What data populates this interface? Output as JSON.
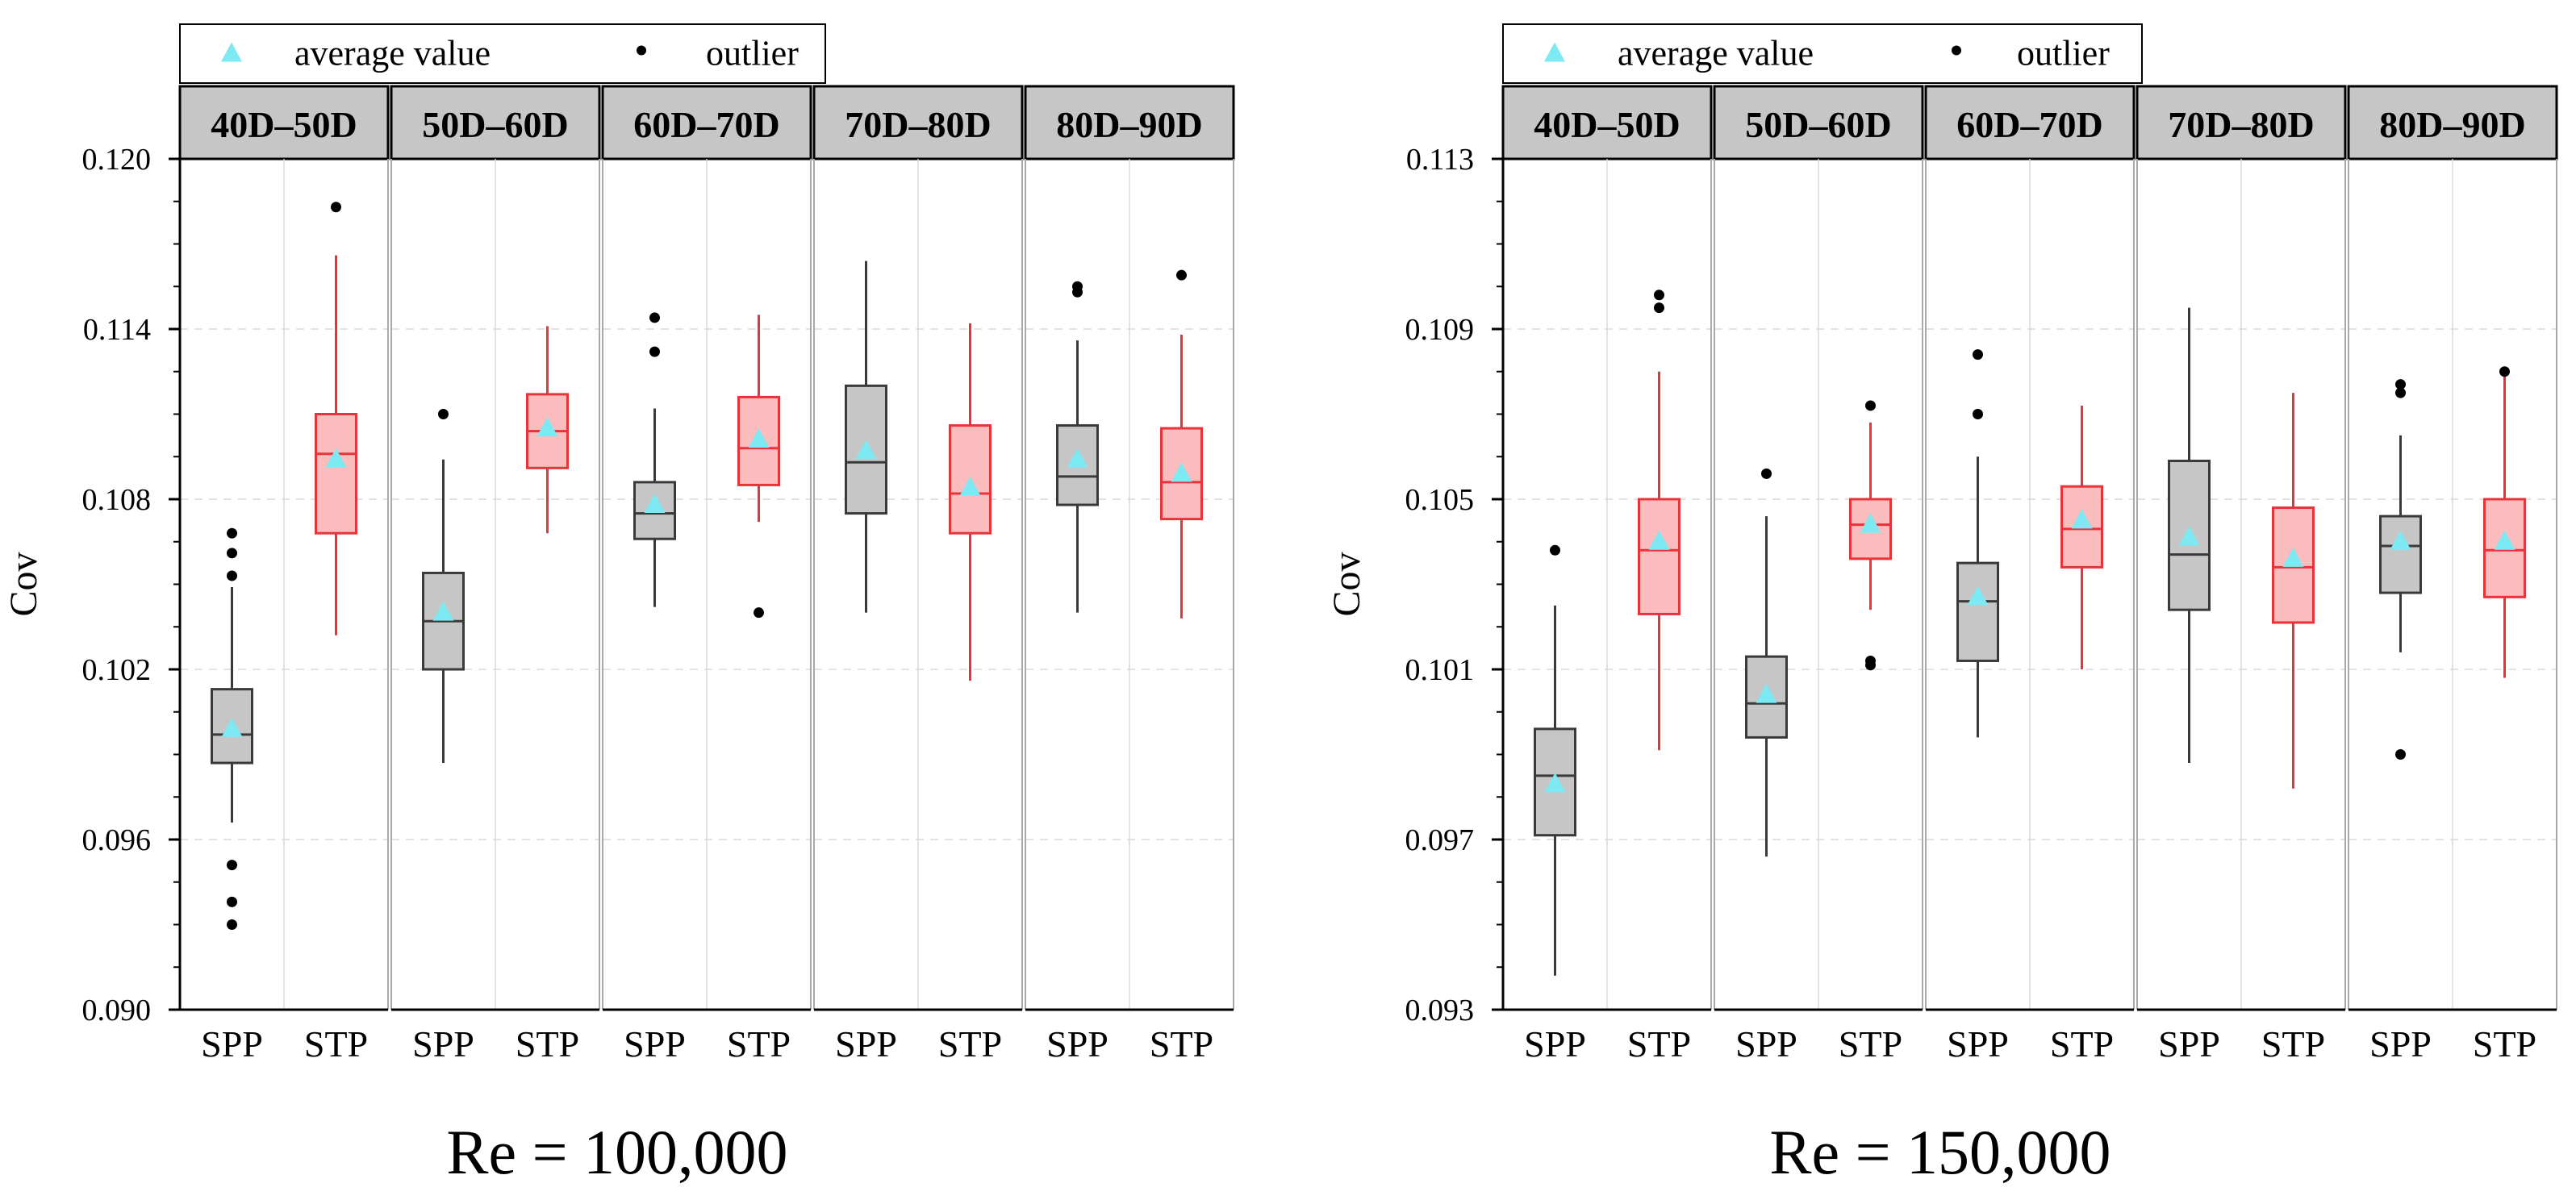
{
  "legend": {
    "mean_label": "average  value",
    "outlier_label": "outlier",
    "mean_color": "#7de9f2",
    "outlier_color": "#000000"
  },
  "colors": {
    "SPP_fill": "#c6c6c6",
    "SPP_stroke": "#3a3a3a",
    "STP_fill": "#fbbcbd",
    "STP_stroke": "#e8333a",
    "header_fill": "#c6c6c6"
  },
  "chart_data": [
    {
      "type": "box",
      "title": "Re = 100,000",
      "ylabel": "Cov",
      "ylim": [
        0.09,
        0.12
      ],
      "yticks": [
        "0.090",
        "0.096",
        "0.102",
        "0.108",
        "0.114",
        "0.120"
      ],
      "panels": [
        {
          "label": "40D–50D",
          "groups": [
            {
              "name": "SPP",
              "whisker_low": 0.0966,
              "q1": 0.0987,
              "median": 0.0997,
              "q3": 0.1013,
              "whisker_high": 0.1049,
              "mean": 0.0999,
              "outliers": [
                0.093,
                0.0938,
                0.0951,
                0.1053,
                0.1061,
                0.1068
              ]
            },
            {
              "name": "STP",
              "whisker_low": 0.1032,
              "q1": 0.1068,
              "median": 0.1096,
              "q3": 0.111,
              "whisker_high": 0.1166,
              "mean": 0.1094,
              "outliers": [
                0.1183
              ]
            }
          ]
        },
        {
          "label": "50D–60D",
          "groups": [
            {
              "name": "SPP",
              "whisker_low": 0.0987,
              "q1": 0.102,
              "median": 0.1037,
              "q3": 0.1054,
              "whisker_high": 0.1094,
              "mean": 0.104,
              "outliers": [
                0.111
              ]
            },
            {
              "name": "STP",
              "whisker_low": 0.1068,
              "q1": 0.1091,
              "median": 0.1104,
              "q3": 0.1117,
              "whisker_high": 0.1141,
              "mean": 0.1105,
              "outliers": []
            }
          ]
        },
        {
          "label": "60D–70D",
          "groups": [
            {
              "name": "SPP",
              "whisker_low": 0.1042,
              "q1": 0.1066,
              "median": 0.1075,
              "q3": 0.1086,
              "whisker_high": 0.1112,
              "mean": 0.1078,
              "outliers": [
                0.1132,
                0.1144
              ]
            },
            {
              "name": "STP",
              "whisker_low": 0.1072,
              "q1": 0.1085,
              "median": 0.1098,
              "q3": 0.1116,
              "whisker_high": 0.1145,
              "mean": 0.1101,
              "outliers": [
                0.104
              ]
            }
          ]
        },
        {
          "label": "70D–80D",
          "groups": [
            {
              "name": "SPP",
              "whisker_low": 0.104,
              "q1": 0.1075,
              "median": 0.1093,
              "q3": 0.112,
              "whisker_high": 0.1164,
              "mean": 0.1097,
              "outliers": []
            },
            {
              "name": "STP",
              "whisker_low": 0.1016,
              "q1": 0.1068,
              "median": 0.1082,
              "q3": 0.1106,
              "whisker_high": 0.1142,
              "mean": 0.1084,
              "outliers": []
            }
          ]
        },
        {
          "label": "80D–90D",
          "groups": [
            {
              "name": "SPP",
              "whisker_low": 0.104,
              "q1": 0.1078,
              "median": 0.1088,
              "q3": 0.1106,
              "whisker_high": 0.1136,
              "mean": 0.1094,
              "outliers": [
                0.1153,
                0.1155
              ]
            },
            {
              "name": "STP",
              "whisker_low": 0.1038,
              "q1": 0.1073,
              "median": 0.1086,
              "q3": 0.1105,
              "whisker_high": 0.1138,
              "mean": 0.1089,
              "outliers": [
                0.1159
              ]
            }
          ]
        }
      ]
    },
    {
      "type": "box",
      "title": "Re = 150,000",
      "ylabel": "Cov",
      "ylim": [
        0.093,
        0.113
      ],
      "yticks": [
        "0.093",
        "0.097",
        "0.101",
        "0.105",
        "0.109",
        "0.113"
      ],
      "panels": [
        {
          "label": "40D–50D",
          "groups": [
            {
              "name": "SPP",
              "whisker_low": 0.0938,
              "q1": 0.0971,
              "median": 0.0985,
              "q3": 0.0996,
              "whisker_high": 0.1025,
              "mean": 0.0983,
              "outliers": [
                0.1038
              ]
            },
            {
              "name": "STP",
              "whisker_low": 0.0991,
              "q1": 0.1023,
              "median": 0.1038,
              "q3": 0.105,
              "whisker_high": 0.108,
              "mean": 0.104,
              "outliers": [
                0.1095,
                0.1098
              ]
            }
          ]
        },
        {
          "label": "50D–60D",
          "groups": [
            {
              "name": "SPP",
              "whisker_low": 0.0966,
              "q1": 0.0994,
              "median": 0.1002,
              "q3": 0.1013,
              "whisker_high": 0.1046,
              "mean": 0.1004,
              "outliers": [
                0.1056
              ]
            },
            {
              "name": "STP",
              "whisker_low": 0.1024,
              "q1": 0.1036,
              "median": 0.1044,
              "q3": 0.105,
              "whisker_high": 0.1068,
              "mean": 0.1044,
              "outliers": [
                0.1011,
                0.1012,
                0.1072
              ]
            }
          ]
        },
        {
          "label": "60D–70D",
          "groups": [
            {
              "name": "SPP",
              "whisker_low": 0.0994,
              "q1": 0.1012,
              "median": 0.1026,
              "q3": 0.1035,
              "whisker_high": 0.106,
              "mean": 0.1027,
              "outliers": [
                0.107,
                0.1084
              ]
            },
            {
              "name": "STP",
              "whisker_low": 0.101,
              "q1": 0.1034,
              "median": 0.1043,
              "q3": 0.1053,
              "whisker_high": 0.1072,
              "mean": 0.1045,
              "outliers": []
            }
          ]
        },
        {
          "label": "70D–80D",
          "groups": [
            {
              "name": "SPP",
              "whisker_low": 0.0988,
              "q1": 0.1024,
              "median": 0.1037,
              "q3": 0.1059,
              "whisker_high": 0.1095,
              "mean": 0.1041,
              "outliers": []
            },
            {
              "name": "STP",
              "whisker_low": 0.0982,
              "q1": 0.1021,
              "median": 0.1034,
              "q3": 0.1048,
              "whisker_high": 0.1075,
              "mean": 0.1036,
              "outliers": []
            }
          ]
        },
        {
          "label": "80D–90D",
          "groups": [
            {
              "name": "SPP",
              "whisker_low": 0.1014,
              "q1": 0.1028,
              "median": 0.1039,
              "q3": 0.1046,
              "whisker_high": 0.1065,
              "mean": 0.104,
              "outliers": [
                0.099,
                0.1075,
                0.1077
              ]
            },
            {
              "name": "STP",
              "whisker_low": 0.1008,
              "q1": 0.1027,
              "median": 0.1038,
              "q3": 0.105,
              "whisker_high": 0.1079,
              "mean": 0.104,
              "outliers": [
                0.108
              ]
            }
          ]
        }
      ]
    }
  ]
}
